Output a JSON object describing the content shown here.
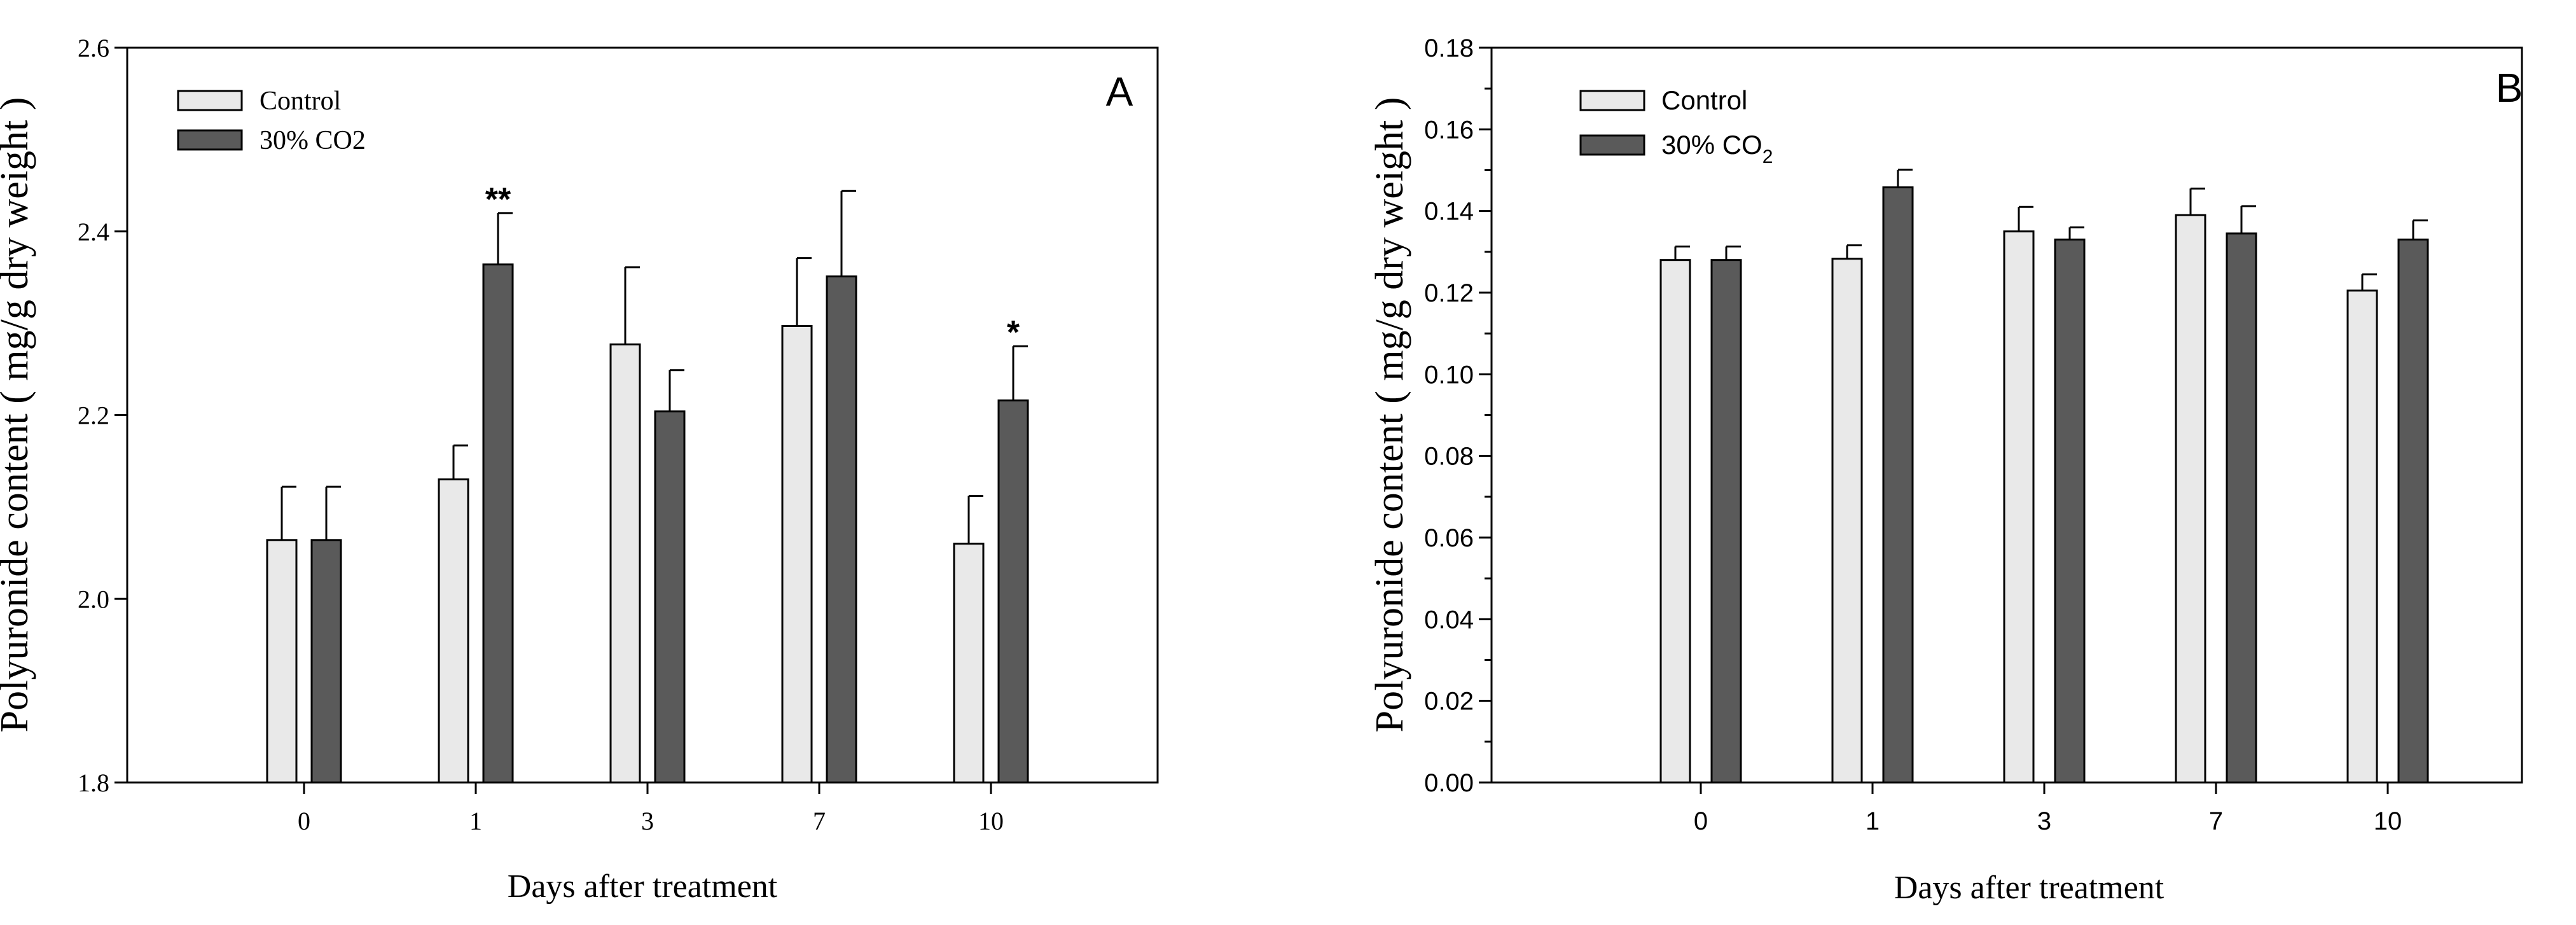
{
  "chart_data": [
    {
      "type": "bar",
      "panel_label": "A",
      "categories": [
        "0",
        "1",
        "3",
        "7",
        "10"
      ],
      "series": [
        {
          "name": "Control",
          "values": [
            2.064,
            2.13,
            2.277,
            2.297,
            2.06
          ],
          "errors": [
            0.058,
            0.037,
            0.084,
            0.074,
            0.052
          ],
          "color": "#e9e9e9"
        },
        {
          "name": "30% CO2",
          "values": [
            2.064,
            2.364,
            2.204,
            2.351,
            2.216
          ],
          "errors": [
            0.058,
            0.056,
            0.045,
            0.093,
            0.059
          ],
          "color": "#5a5a5a"
        }
      ],
      "significance": [
        {
          "category": "1",
          "series": "30% CO2",
          "label": "**"
        },
        {
          "category": "10",
          "series": "30% CO2",
          "label": "*"
        }
      ],
      "xlabel": "Days after treatment",
      "ylabel": "Polyuronide content ( mg/g dry weight )",
      "ylim": [
        1.8,
        2.6
      ],
      "yticks": [
        "1.8",
        "2.0",
        "2.2",
        "2.4",
        "2.6"
      ],
      "legend_position": "top-left",
      "grid": false
    },
    {
      "type": "bar",
      "panel_label": "B",
      "categories": [
        "0",
        "1",
        "3",
        "7",
        "10"
      ],
      "series": [
        {
          "name": "Control",
          "values": [
            0.128,
            0.1283,
            0.135,
            0.139,
            0.1205
          ],
          "errors": [
            0.0033,
            0.0033,
            0.006,
            0.0065,
            0.004
          ],
          "color": "#e9e9e9"
        },
        {
          "name": "30% CO2",
          "values": [
            0.128,
            0.1458,
            0.133,
            0.1345,
            0.133
          ],
          "errors": [
            0.0033,
            0.0043,
            0.003,
            0.0067,
            0.0047
          ],
          "color": "#5a5a5a"
        }
      ],
      "legend_entries": [
        {
          "text": "Control"
        },
        {
          "text": "30% CO",
          "subscript": "2"
        }
      ],
      "xlabel": "Days after treatment",
      "ylabel": "Polyuronide content ( mg/g dry weight )",
      "ylim": [
        0,
        0.18
      ],
      "yticks": [
        "0.00",
        "0.02",
        "0.04",
        "0.06",
        "0.08",
        "0.10",
        "0.12",
        "0.14",
        "0.16",
        "0.18"
      ],
      "legend_position": "top-left",
      "grid": false
    }
  ]
}
